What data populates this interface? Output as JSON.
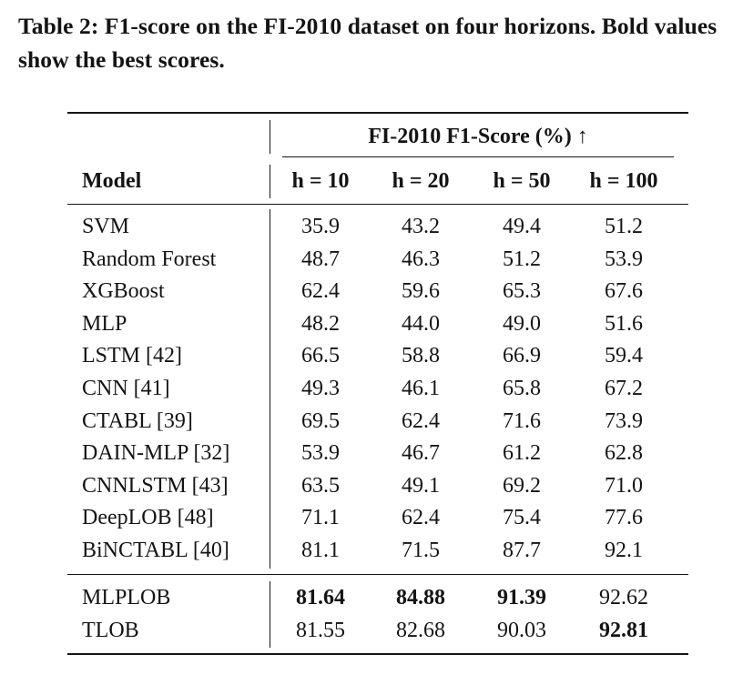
{
  "caption": "Table 2: F1-score on the FI-2010 dataset on four horizons. Bold values show the best scores.",
  "table": {
    "group_header": "FI-2010 F1-Score (%) ↑",
    "model_header": "Model",
    "columns": [
      "h = 10",
      "h = 20",
      "h = 50",
      "h = 100"
    ],
    "baseline_rows": [
      {
        "model": "SVM",
        "values": [
          "35.9",
          "43.2",
          "49.4",
          "51.2"
        ],
        "bold": [
          false,
          false,
          false,
          false
        ]
      },
      {
        "model": "Random Forest",
        "values": [
          "48.7",
          "46.3",
          "51.2",
          "53.9"
        ],
        "bold": [
          false,
          false,
          false,
          false
        ]
      },
      {
        "model": "XGBoost",
        "values": [
          "62.4",
          "59.6",
          "65.3",
          "67.6"
        ],
        "bold": [
          false,
          false,
          false,
          false
        ]
      },
      {
        "model": "MLP",
        "values": [
          "48.2",
          "44.0",
          "49.0",
          "51.6"
        ],
        "bold": [
          false,
          false,
          false,
          false
        ]
      },
      {
        "model": "LSTM [42]",
        "values": [
          "66.5",
          "58.8",
          "66.9",
          "59.4"
        ],
        "bold": [
          false,
          false,
          false,
          false
        ]
      },
      {
        "model": "CNN [41]",
        "values": [
          "49.3",
          "46.1",
          "65.8",
          "67.2"
        ],
        "bold": [
          false,
          false,
          false,
          false
        ]
      },
      {
        "model": "CTABL [39]",
        "values": [
          "69.5",
          "62.4",
          "71.6",
          "73.9"
        ],
        "bold": [
          false,
          false,
          false,
          false
        ]
      },
      {
        "model": "DAIN-MLP [32]",
        "values": [
          "53.9",
          "46.7",
          "61.2",
          "62.8"
        ],
        "bold": [
          false,
          false,
          false,
          false
        ]
      },
      {
        "model": "CNNLSTM [43]",
        "values": [
          "63.5",
          "49.1",
          "69.2",
          "71.0"
        ],
        "bold": [
          false,
          false,
          false,
          false
        ]
      },
      {
        "model": "DeepLOB [48]",
        "values": [
          "71.1",
          "62.4",
          "75.4",
          "77.6"
        ],
        "bold": [
          false,
          false,
          false,
          false
        ]
      },
      {
        "model": "BiNCTABL [40]",
        "values": [
          "81.1",
          "71.5",
          "87.7",
          "92.1"
        ],
        "bold": [
          false,
          false,
          false,
          false
        ]
      }
    ],
    "proposed_rows": [
      {
        "model": "MLPLOB",
        "values": [
          "81.64",
          "84.88",
          "91.39",
          "92.62"
        ],
        "bold": [
          true,
          true,
          true,
          false
        ]
      },
      {
        "model": "TLOB",
        "values": [
          "81.55",
          "82.68",
          "90.03",
          "92.81"
        ],
        "bold": [
          false,
          false,
          false,
          true
        ]
      }
    ]
  }
}
